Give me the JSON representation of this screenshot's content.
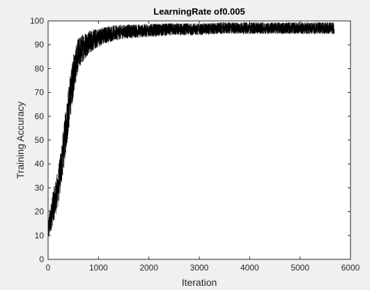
{
  "chart_data": {
    "type": "line",
    "title": "LearningRate of0.005",
    "xlabel": "Iteration",
    "ylabel": "Training Accuracy",
    "xlim": [
      0,
      6000
    ],
    "ylim": [
      0,
      100
    ],
    "xticks": [
      0,
      1000,
      2000,
      3000,
      4000,
      5000,
      6000
    ],
    "yticks": [
      0,
      10,
      20,
      30,
      40,
      50,
      60,
      70,
      80,
      90,
      100
    ],
    "grid": false,
    "series": [
      {
        "color": "#000000",
        "description_points": {
          "x": [
            0,
            100,
            200,
            300,
            400,
            500,
            600,
            700,
            800,
            1000,
            1200,
            1500,
            2000,
            2500,
            3000,
            3500,
            4000,
            4500,
            5000,
            5500,
            5680
          ],
          "y": [
            12,
            22,
            30,
            45,
            62,
            77,
            86,
            89,
            91,
            93,
            94.5,
            95.5,
            96,
            96.5,
            96.5,
            97,
            97,
            97,
            97,
            97,
            97
          ]
        },
        "noise_amplitude": [
          5,
          7,
          8,
          9,
          10,
          9,
          7,
          6,
          5,
          4,
          3.5,
          3,
          2.8,
          2.6,
          2.5,
          2.5,
          2.5,
          2.5,
          2.5,
          2.5,
          2.5
        ]
      }
    ]
  },
  "colors": {
    "page_background": "#f0f0f0",
    "plot_background": "#ffffff",
    "axis": "#262626",
    "line": "#000000"
  }
}
